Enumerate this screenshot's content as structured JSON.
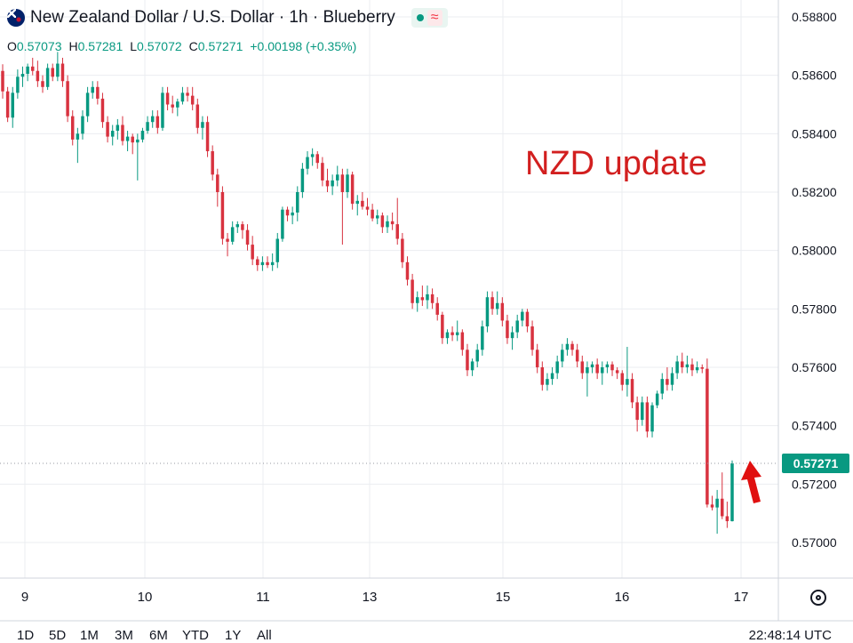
{
  "header": {
    "title": "New Zealand Dollar / U.S. Dollar · 1h · Blueberry",
    "icon": "nz-flag-icon",
    "status_icon": "market-open-dot-icon",
    "extra_icon": "wave-icon",
    "open_label": "O",
    "open_value": "0.57073",
    "high_label": "H",
    "high_value": "0.57281",
    "low_label": "L",
    "low_value": "0.57072",
    "close_label": "C",
    "close_value": "0.57271",
    "change": "+0.00198 (+0.35%)"
  },
  "annotation": {
    "text": "NZD update",
    "color": "#d21f1f",
    "arrow_icon": "red-up-arrow-icon"
  },
  "current_price": "0.57271",
  "bottom": {
    "ranges": [
      "1D",
      "5D",
      "1M",
      "3M",
      "6M",
      "YTD",
      "1Y",
      "All"
    ],
    "clock": "22:48:14 UTC",
    "settings_icon": "settings-icon"
  },
  "colors": {
    "up": "#089981",
    "down": "#d8323f",
    "grid": "#ebedf1",
    "accent": "#089981"
  },
  "chart_data": {
    "type": "candlestick",
    "title": "New Zealand Dollar / U.S. Dollar · 1h · Blueberry",
    "x_tick_labels": [
      "9",
      "10",
      "11",
      "13",
      "15",
      "16",
      "17"
    ],
    "y_tick_labels": [
      "0.58800",
      "0.58600",
      "0.58400",
      "0.58200",
      "0.58000",
      "0.57800",
      "0.57600",
      "0.57400",
      "0.57200",
      "0.57000"
    ],
    "ylim": [
      0.5693,
      0.5885
    ],
    "grid": true,
    "last_price": 0.57271,
    "series": [
      {
        "name": "",
        "ohlc": [
          [
            0.58615,
            0.58638,
            0.5852,
            0.58545
          ],
          [
            0.58545,
            0.5856,
            0.5844,
            0.58455
          ],
          [
            0.58455,
            0.5856,
            0.5842,
            0.5854
          ],
          [
            0.5854,
            0.5862,
            0.5852,
            0.58595
          ],
          [
            0.58595,
            0.5863,
            0.5856,
            0.58605
          ],
          [
            0.58605,
            0.5864,
            0.5858,
            0.5863
          ],
          [
            0.5863,
            0.5866,
            0.586,
            0.58615
          ],
          [
            0.58615,
            0.5865,
            0.5856,
            0.5858
          ],
          [
            0.5858,
            0.586,
            0.5854,
            0.5856
          ],
          [
            0.5856,
            0.5864,
            0.5855,
            0.58625
          ],
          [
            0.58625,
            0.5864,
            0.5858,
            0.58595
          ],
          [
            0.58595,
            0.5868,
            0.5858,
            0.5864
          ],
          [
            0.5864,
            0.5866,
            0.5856,
            0.5858
          ],
          [
            0.5858,
            0.586,
            0.5844,
            0.5846
          ],
          [
            0.5846,
            0.5848,
            0.5836,
            0.5838
          ],
          [
            0.5838,
            0.5842,
            0.583,
            0.584
          ],
          [
            0.584,
            0.5848,
            0.5838,
            0.5846
          ],
          [
            0.5846,
            0.5856,
            0.5844,
            0.5854
          ],
          [
            0.5854,
            0.5858,
            0.5852,
            0.5856
          ],
          [
            0.5856,
            0.5858,
            0.585,
            0.5852
          ],
          [
            0.5852,
            0.5854,
            0.5842,
            0.5844
          ],
          [
            0.5844,
            0.5846,
            0.5837,
            0.5839
          ],
          [
            0.5839,
            0.5843,
            0.5836,
            0.5841
          ],
          [
            0.5841,
            0.5845,
            0.5838,
            0.5843
          ],
          [
            0.5843,
            0.5846,
            0.5836,
            0.58375
          ],
          [
            0.58375,
            0.5841,
            0.5834,
            0.5839
          ],
          [
            0.5839,
            0.584,
            0.5833,
            0.5837
          ],
          [
            0.5837,
            0.584,
            0.5824,
            0.5838
          ],
          [
            0.5838,
            0.5842,
            0.5837,
            0.5841
          ],
          [
            0.5841,
            0.5846,
            0.584,
            0.5844
          ],
          [
            0.5844,
            0.5848,
            0.5842,
            0.5846
          ],
          [
            0.5846,
            0.5848,
            0.584,
            0.5842
          ],
          [
            0.5842,
            0.5856,
            0.5841,
            0.5854
          ],
          [
            0.5854,
            0.5856,
            0.5848,
            0.585
          ],
          [
            0.585,
            0.5853,
            0.5847,
            0.5849
          ],
          [
            0.5849,
            0.5852,
            0.5846,
            0.5851
          ],
          [
            0.5851,
            0.5856,
            0.585,
            0.5854
          ],
          [
            0.5854,
            0.5856,
            0.5851,
            0.5853
          ],
          [
            0.5853,
            0.5856,
            0.5848,
            0.585
          ],
          [
            0.585,
            0.5852,
            0.584,
            0.5842
          ],
          [
            0.5842,
            0.5846,
            0.5838,
            0.5844
          ],
          [
            0.5844,
            0.5846,
            0.5832,
            0.5834
          ],
          [
            0.5834,
            0.5836,
            0.5824,
            0.5826
          ],
          [
            0.5826,
            0.5828,
            0.5815,
            0.582
          ],
          [
            0.582,
            0.5822,
            0.5802,
            0.5804
          ],
          [
            0.5804,
            0.5806,
            0.5798,
            0.5803
          ],
          [
            0.5803,
            0.581,
            0.5802,
            0.5808
          ],
          [
            0.5808,
            0.581,
            0.5806,
            0.5809
          ],
          [
            0.5809,
            0.581,
            0.5804,
            0.5807
          ],
          [
            0.5807,
            0.5809,
            0.58,
            0.5802
          ],
          [
            0.5802,
            0.5805,
            0.5795,
            0.5797
          ],
          [
            0.5797,
            0.5798,
            0.5793,
            0.5795
          ],
          [
            0.5795,
            0.5798,
            0.5793,
            0.5796
          ],
          [
            0.5796,
            0.5798,
            0.5794,
            0.5795
          ],
          [
            0.5795,
            0.5799,
            0.5793,
            0.5796
          ],
          [
            0.5796,
            0.5806,
            0.5794,
            0.5804
          ],
          [
            0.5804,
            0.5815,
            0.5803,
            0.5814
          ],
          [
            0.5814,
            0.5815,
            0.581,
            0.5812
          ],
          [
            0.5812,
            0.5815,
            0.5809,
            0.5813
          ],
          [
            0.5813,
            0.5822,
            0.581,
            0.582
          ],
          [
            0.582,
            0.583,
            0.5818,
            0.5828
          ],
          [
            0.5828,
            0.5834,
            0.5826,
            0.5832
          ],
          [
            0.5832,
            0.5835,
            0.5829,
            0.5833
          ],
          [
            0.5833,
            0.5834,
            0.5828,
            0.583
          ],
          [
            0.583,
            0.5832,
            0.5822,
            0.5824
          ],
          [
            0.5824,
            0.5828,
            0.582,
            0.5822
          ],
          [
            0.5822,
            0.5826,
            0.5819,
            0.5824
          ],
          [
            0.5824,
            0.5829,
            0.5822,
            0.5826
          ],
          [
            0.5826,
            0.5828,
            0.5802,
            0.582
          ],
          [
            0.582,
            0.5828,
            0.5818,
            0.5826
          ],
          [
            0.5826,
            0.5827,
            0.5814,
            0.5816
          ],
          [
            0.5816,
            0.5819,
            0.5812,
            0.5817
          ],
          [
            0.5817,
            0.582,
            0.5814,
            0.5815
          ],
          [
            0.5815,
            0.5818,
            0.5812,
            0.5814
          ],
          [
            0.5814,
            0.5816,
            0.581,
            0.5811
          ],
          [
            0.5811,
            0.5814,
            0.5809,
            0.5812
          ],
          [
            0.5812,
            0.5813,
            0.5806,
            0.5808
          ],
          [
            0.5808,
            0.5812,
            0.5806,
            0.581
          ],
          [
            0.581,
            0.5813,
            0.5807,
            0.5809
          ],
          [
            0.5809,
            0.5818,
            0.5802,
            0.5804
          ],
          [
            0.5804,
            0.5806,
            0.5794,
            0.5796
          ],
          [
            0.5796,
            0.5798,
            0.5788,
            0.579
          ],
          [
            0.579,
            0.5792,
            0.578,
            0.5782
          ],
          [
            0.5782,
            0.5786,
            0.5779,
            0.5784
          ],
          [
            0.5784,
            0.5788,
            0.5781,
            0.5783
          ],
          [
            0.5783,
            0.5788,
            0.578,
            0.5785
          ],
          [
            0.5785,
            0.5787,
            0.578,
            0.5782
          ],
          [
            0.5782,
            0.5784,
            0.5776,
            0.5778
          ],
          [
            0.5778,
            0.5779,
            0.5768,
            0.577
          ],
          [
            0.577,
            0.5773,
            0.5768,
            0.5772
          ],
          [
            0.5772,
            0.5774,
            0.5769,
            0.5771
          ],
          [
            0.5771,
            0.5776,
            0.5769,
            0.5772
          ],
          [
            0.5772,
            0.5773,
            0.5764,
            0.5766
          ],
          [
            0.5766,
            0.5768,
            0.5757,
            0.5759
          ],
          [
            0.5759,
            0.5763,
            0.5757,
            0.5762
          ],
          [
            0.5762,
            0.5768,
            0.576,
            0.5766
          ],
          [
            0.5766,
            0.5776,
            0.5764,
            0.5774
          ],
          [
            0.5774,
            0.5786,
            0.5772,
            0.5784
          ],
          [
            0.5784,
            0.5786,
            0.5778,
            0.578
          ],
          [
            0.578,
            0.5786,
            0.5778,
            0.5782
          ],
          [
            0.5782,
            0.5784,
            0.5774,
            0.5776
          ],
          [
            0.5776,
            0.5778,
            0.5768,
            0.577
          ],
          [
            0.577,
            0.5774,
            0.5766,
            0.5772
          ],
          [
            0.5772,
            0.5778,
            0.577,
            0.5776
          ],
          [
            0.5776,
            0.578,
            0.5774,
            0.5779
          ],
          [
            0.5779,
            0.578,
            0.5772,
            0.5774
          ],
          [
            0.5774,
            0.5776,
            0.5764,
            0.5766
          ],
          [
            0.5766,
            0.5768,
            0.5758,
            0.576
          ],
          [
            0.576,
            0.5762,
            0.5752,
            0.5754
          ],
          [
            0.5754,
            0.5758,
            0.5752,
            0.5756
          ],
          [
            0.5756,
            0.576,
            0.5754,
            0.5758
          ],
          [
            0.5758,
            0.5764,
            0.5756,
            0.5762
          ],
          [
            0.5762,
            0.5768,
            0.576,
            0.5766
          ],
          [
            0.5766,
            0.577,
            0.5764,
            0.5768
          ],
          [
            0.5768,
            0.5769,
            0.5764,
            0.5766
          ],
          [
            0.5766,
            0.5768,
            0.576,
            0.5762
          ],
          [
            0.5762,
            0.5764,
            0.5756,
            0.5758
          ],
          [
            0.5758,
            0.5762,
            0.575,
            0.576
          ],
          [
            0.576,
            0.5762,
            0.5758,
            0.5761
          ],
          [
            0.5761,
            0.5763,
            0.5756,
            0.5758
          ],
          [
            0.5758,
            0.5762,
            0.5754,
            0.576
          ],
          [
            0.576,
            0.5762,
            0.5758,
            0.5761
          ],
          [
            0.5761,
            0.5762,
            0.5757,
            0.5759
          ],
          [
            0.5759,
            0.576,
            0.5756,
            0.5758
          ],
          [
            0.5758,
            0.5759,
            0.5752,
            0.5754
          ],
          [
            0.5754,
            0.5767,
            0.575,
            0.5756
          ],
          [
            0.5756,
            0.5758,
            0.5746,
            0.5748
          ],
          [
            0.5748,
            0.575,
            0.5738,
            0.5742
          ],
          [
            0.5742,
            0.575,
            0.574,
            0.5748
          ],
          [
            0.5748,
            0.575,
            0.5736,
            0.5738
          ],
          [
            0.5738,
            0.5748,
            0.5736,
            0.5747
          ],
          [
            0.5747,
            0.5752,
            0.5746,
            0.5751
          ],
          [
            0.5751,
            0.5758,
            0.5749,
            0.5756
          ],
          [
            0.5756,
            0.576,
            0.5752,
            0.5754
          ],
          [
            0.5754,
            0.576,
            0.5752,
            0.5758
          ],
          [
            0.5758,
            0.5764,
            0.5756,
            0.5762
          ],
          [
            0.5762,
            0.5765,
            0.5758,
            0.576
          ],
          [
            0.576,
            0.5764,
            0.5758,
            0.5761
          ],
          [
            0.5761,
            0.5763,
            0.5757,
            0.5759
          ],
          [
            0.5759,
            0.5762,
            0.5758,
            0.576
          ],
          [
            0.576,
            0.5761,
            0.5758,
            0.57595
          ],
          [
            0.57595,
            0.5763,
            0.5712,
            0.5713
          ],
          [
            0.5713,
            0.5716,
            0.5711,
            0.5712
          ],
          [
            0.5712,
            0.5718,
            0.5703,
            0.5715
          ],
          [
            0.5715,
            0.5724,
            0.5708,
            0.5709
          ],
          [
            0.5709,
            0.5714,
            0.5705,
            0.57073
          ],
          [
            0.57073,
            0.57281,
            0.57072,
            0.57271
          ]
        ]
      }
    ]
  }
}
